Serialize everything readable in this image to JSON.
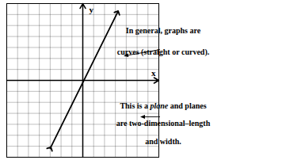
{
  "chart_data": {
    "type": "line",
    "x": [
      -3.0,
      3.2
    ],
    "values": [
      -6.2,
      6.2
    ],
    "marker": "arrow",
    "xlim": [
      -7,
      7
    ],
    "ylim": [
      -7,
      7
    ],
    "xticks": [
      -7,
      -6,
      -5,
      -4,
      -3,
      -2,
      -1,
      0,
      1,
      2,
      3,
      4,
      5,
      6,
      7
    ],
    "yticks": [
      -7,
      -6,
      -5,
      -4,
      -3,
      -2,
      -1,
      0,
      1,
      2,
      3,
      4,
      5,
      6,
      7
    ],
    "grid": true,
    "tick_labels": false,
    "x_label": "x",
    "y_label": "y",
    "annotations": [
      {
        "lines": [
          "In general, graphs are",
          "curves (straight or curved)."
        ]
      },
      {
        "lines": [
          [
            "This is a ",
            "plane",
            " and planes"
          ],
          "are two-dimensional–length",
          "and width."
        ]
      }
    ]
  }
}
